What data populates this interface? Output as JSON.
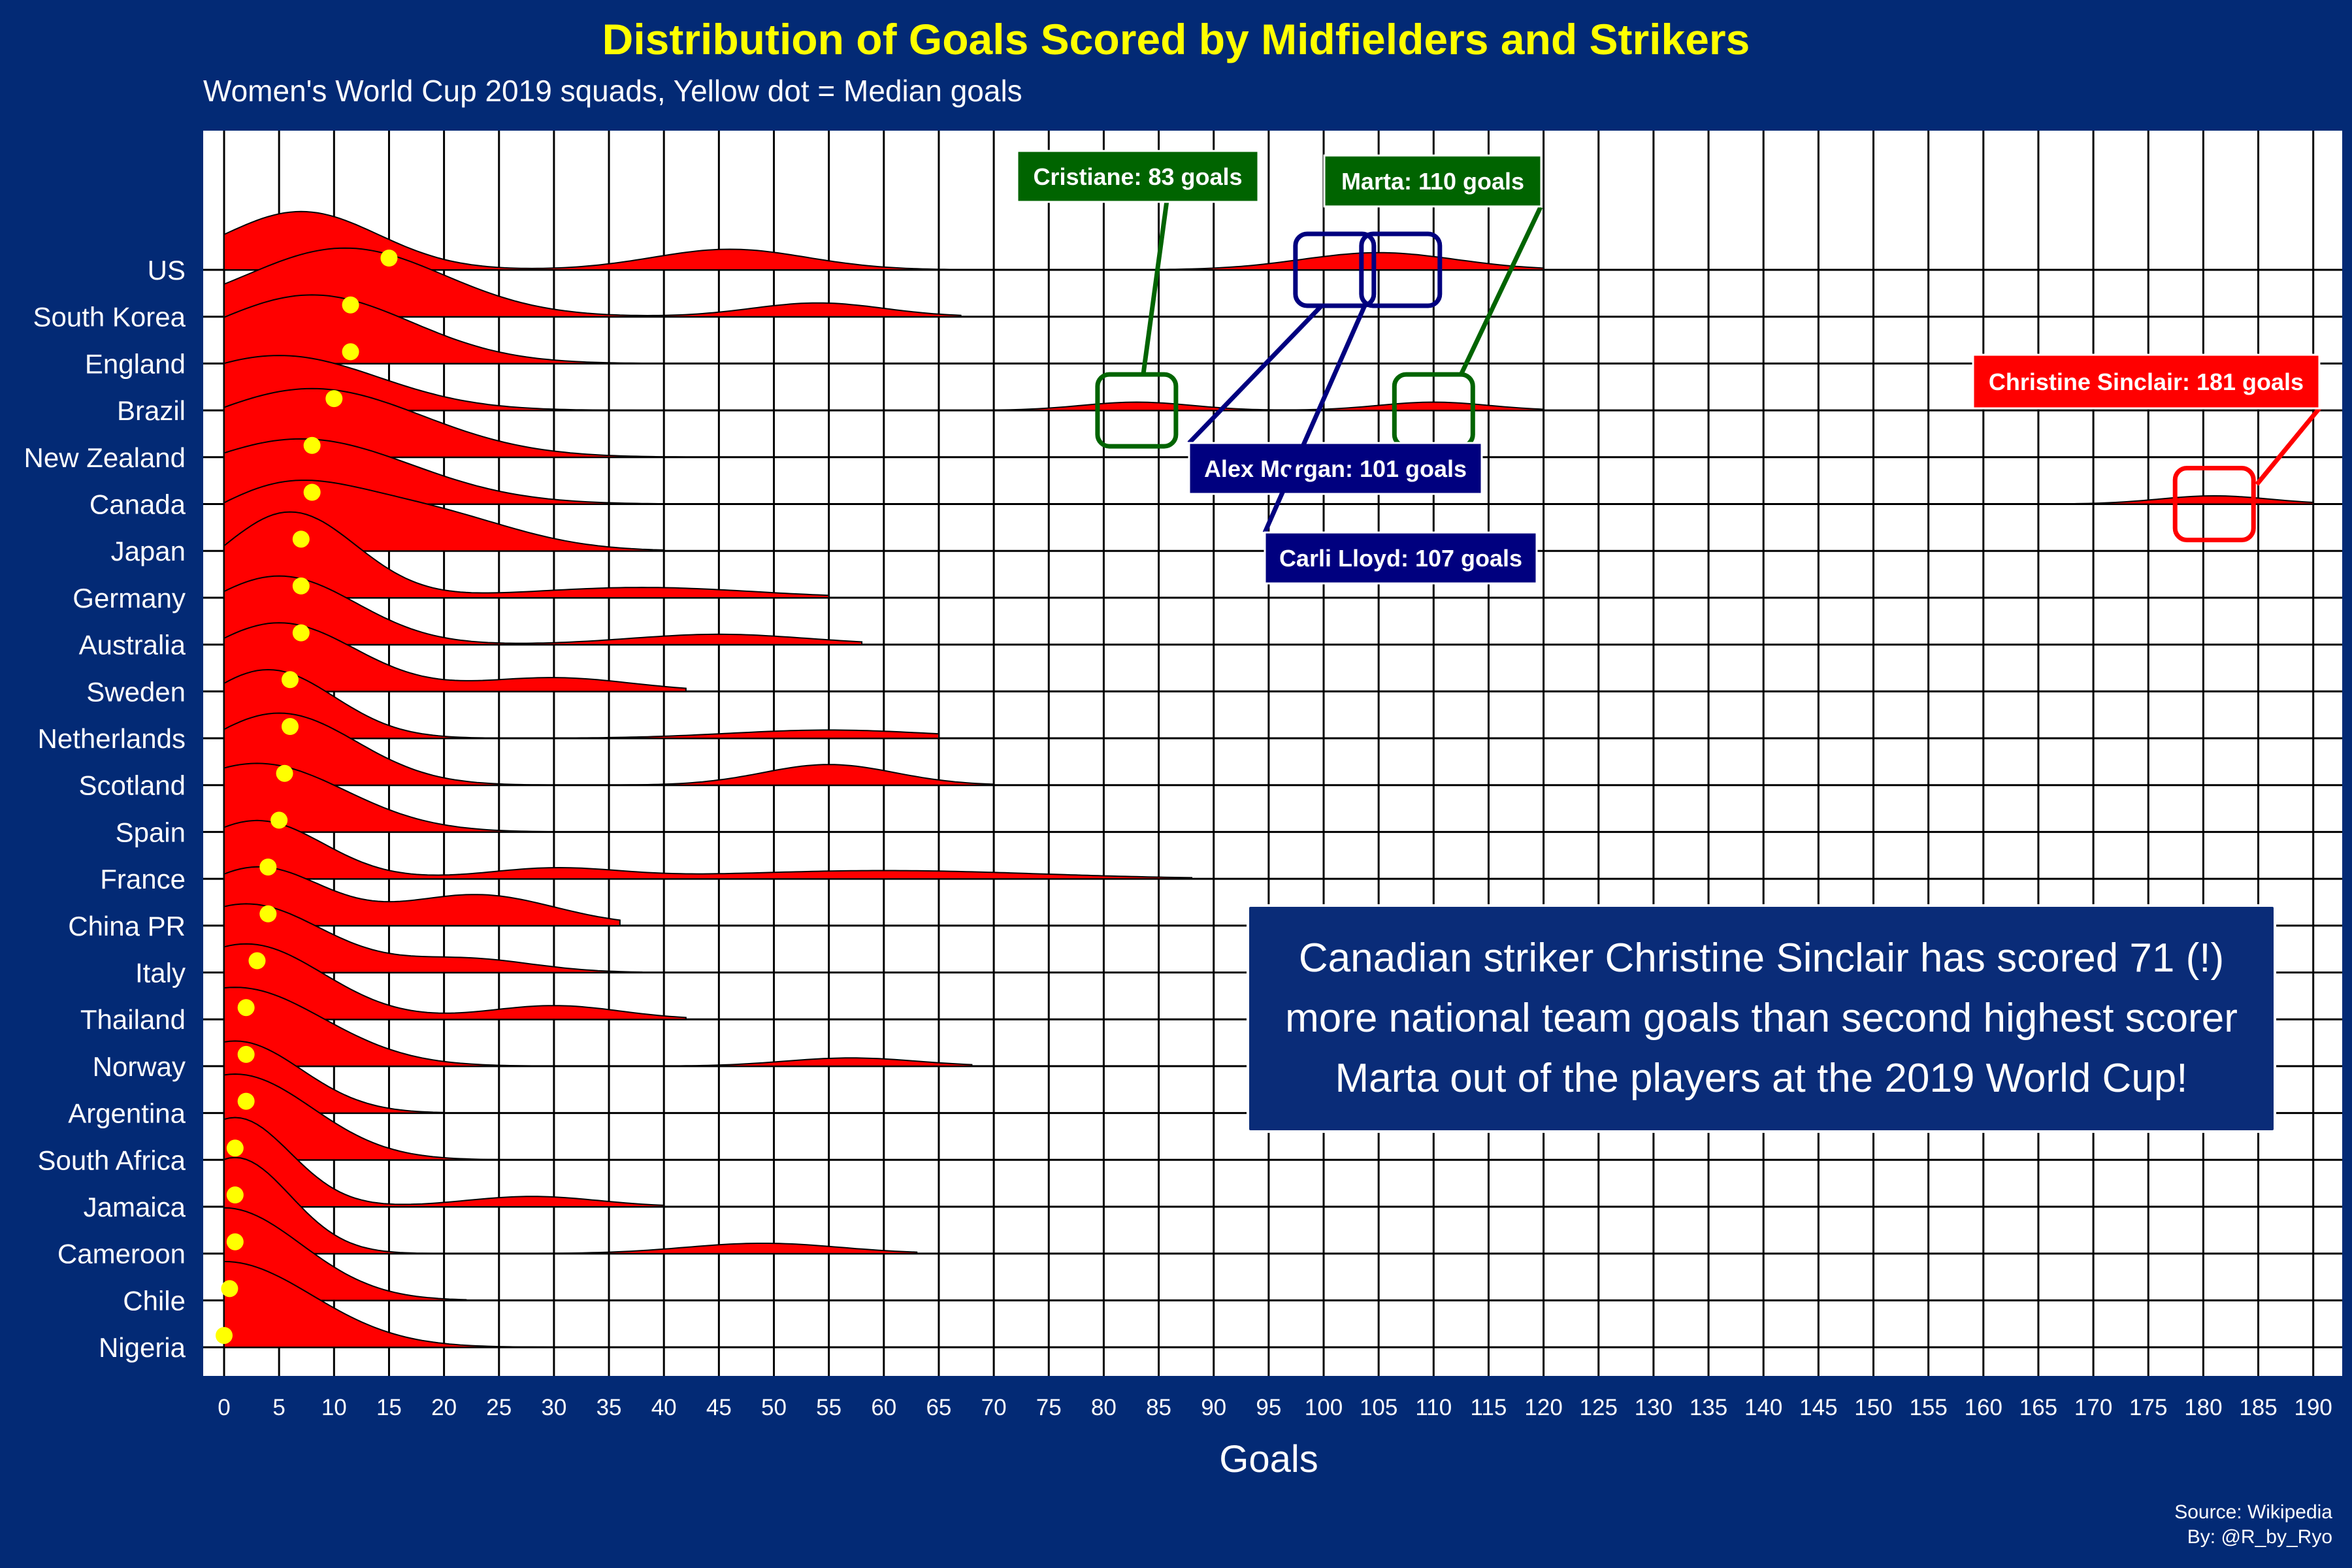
{
  "chart_data": {
    "type": "ridgeline",
    "title": "Distribution of Goals Scored by Midfielders and Strikers",
    "subtitle": "Women's World Cup 2019 squads, Yellow dot = Median goals",
    "xlabel": "Goals",
    "ylabel": "",
    "xlim": [
      -2,
      192
    ],
    "x_ticks": [
      0,
      5,
      10,
      15,
      20,
      25,
      30,
      35,
      40,
      45,
      50,
      55,
      60,
      65,
      70,
      75,
      80,
      85,
      90,
      95,
      100,
      105,
      110,
      115,
      120,
      125,
      130,
      135,
      140,
      145,
      150,
      155,
      160,
      165,
      170,
      175,
      180,
      185,
      190
    ],
    "grid": true,
    "colors": {
      "background": "#032A75",
      "panel": "#FFFFFF",
      "ridge_fill": "#FF0000",
      "median_dot": "#FFFF00",
      "title": "#FFFF00",
      "annotation_green": "#006400",
      "annotation_blue": "#00007F",
      "annotation_red": "#FF0000"
    },
    "categories": [
      "US",
      "South Korea",
      "England",
      "Brazil",
      "New Zealand",
      "Canada",
      "Japan",
      "Germany",
      "Australia",
      "Sweden",
      "Netherlands",
      "Scotland",
      "Spain",
      "France",
      "China PR",
      "Italy",
      "Thailand",
      "Norway",
      "Argentina",
      "South Africa",
      "Jamaica",
      "Cameroon",
      "Chile",
      "Nigeria"
    ],
    "medians": [
      15,
      11.5,
      11.5,
      10,
      8,
      8,
      7,
      7,
      7,
      6,
      6,
      5.5,
      5,
      4,
      4,
      3,
      2,
      2,
      2,
      1,
      1,
      1,
      0.5,
      0
    ],
    "distributions": [
      {
        "name": "US",
        "range": [
          0,
          120
        ],
        "peaks": [
          [
            7,
            0.85,
            7
          ],
          [
            46,
            0.3,
            7
          ],
          [
            105,
            0.25,
            7
          ]
        ]
      },
      {
        "name": "South Korea",
        "range": [
          0,
          67
        ],
        "peaks": [
          [
            11,
            1.0,
            9
          ],
          [
            54,
            0.2,
            6
          ]
        ]
      },
      {
        "name": "England",
        "range": [
          0,
          42
        ],
        "peaks": [
          [
            8,
            1.0,
            9
          ]
        ]
      },
      {
        "name": "Brazil",
        "range": [
          0,
          120
        ],
        "peaks": [
          [
            5,
            0.8,
            9
          ],
          [
            83,
            0.12,
            5
          ],
          [
            110,
            0.12,
            5
          ]
        ]
      },
      {
        "name": "New Zealand",
        "range": [
          0,
          45
        ],
        "peaks": [
          [
            8,
            1.0,
            10
          ]
        ]
      },
      {
        "name": "Canada",
        "range": [
          0,
          190
        ],
        "peaks": [
          [
            7,
            0.95,
            10
          ],
          [
            181,
            0.12,
            5
          ]
        ]
      },
      {
        "name": "Japan",
        "range": [
          0,
          40
        ],
        "peaks": [
          [
            5,
            0.85,
            7
          ],
          [
            18,
            0.55,
            8
          ]
        ]
      },
      {
        "name": "Germany",
        "range": [
          0,
          55
        ],
        "peaks": [
          [
            6,
            1.25,
            6
          ],
          [
            38,
            0.15,
            10
          ]
        ]
      },
      {
        "name": "Australia",
        "range": [
          0,
          58
        ],
        "peaks": [
          [
            5,
            1.0,
            7
          ],
          [
            45,
            0.15,
            8
          ]
        ]
      },
      {
        "name": "Sweden",
        "range": [
          0,
          42
        ],
        "peaks": [
          [
            5,
            1.0,
            7
          ],
          [
            30,
            0.2,
            7
          ]
        ]
      },
      {
        "name": "Netherlands",
        "range": [
          0,
          65
        ],
        "peaks": [
          [
            4,
            1.0,
            6
          ],
          [
            55,
            0.12,
            9
          ]
        ]
      },
      {
        "name": "Scotland",
        "range": [
          0,
          70
        ],
        "peaks": [
          [
            5,
            1.05,
            7
          ],
          [
            55,
            0.3,
            6
          ]
        ]
      },
      {
        "name": "Spain",
        "range": [
          0,
          40
        ],
        "peaks": [
          [
            3,
            1.0,
            8
          ]
        ]
      },
      {
        "name": "France",
        "range": [
          0,
          88
        ],
        "peaks": [
          [
            3,
            0.85,
            6
          ],
          [
            30,
            0.15,
            6
          ],
          [
            60,
            0.12,
            14
          ]
        ]
      },
      {
        "name": "China PR",
        "range": [
          0,
          36
        ],
        "peaks": [
          [
            3,
            0.85,
            6
          ],
          [
            23,
            0.45,
            7
          ]
        ]
      },
      {
        "name": "Italy",
        "range": [
          0,
          38
        ],
        "peaks": [
          [
            2,
            1.0,
            7
          ],
          [
            22,
            0.2,
            6
          ]
        ]
      },
      {
        "name": "Thailand",
        "range": [
          0,
          42
        ],
        "peaks": [
          [
            2,
            1.1,
            7
          ],
          [
            30,
            0.2,
            6
          ]
        ]
      },
      {
        "name": "Norway",
        "range": [
          0,
          68
        ],
        "peaks": [
          [
            1,
            1.15,
            8
          ],
          [
            57,
            0.12,
            6
          ]
        ]
      },
      {
        "name": "Argentina",
        "range": [
          0,
          20
        ],
        "peaks": [
          [
            1,
            1.05,
            6
          ]
        ]
      },
      {
        "name": "South Africa",
        "range": [
          0,
          30
        ],
        "peaks": [
          [
            1,
            1.25,
            7
          ]
        ]
      },
      {
        "name": "Jamaica",
        "range": [
          0,
          40
        ],
        "peaks": [
          [
            1,
            1.3,
            5
          ],
          [
            28,
            0.15,
            6
          ]
        ]
      },
      {
        "name": "Cameroon",
        "range": [
          0,
          63
        ],
        "peaks": [
          [
            1,
            1.4,
            5
          ],
          [
            49,
            0.15,
            7
          ]
        ]
      },
      {
        "name": "Chile",
        "range": [
          0,
          22
        ],
        "peaks": [
          [
            0,
            1.35,
            7
          ]
        ]
      },
      {
        "name": "Nigeria",
        "range": [
          0,
          32
        ],
        "peaks": [
          [
            0,
            1.25,
            8
          ]
        ]
      }
    ],
    "annotations": [
      {
        "label": "Cristiane: 83 goals",
        "color": "#006400",
        "x": 83,
        "country": "Brazil"
      },
      {
        "label": "Marta: 110 goals",
        "color": "#006400",
        "x": 110,
        "country": "Brazil"
      },
      {
        "label": "Alex Morgan: 101 goals",
        "color": "#00007F",
        "x": 101,
        "country": "US"
      },
      {
        "label": "Carli Lloyd: 107 goals",
        "color": "#00007F",
        "x": 107,
        "country": "US"
      },
      {
        "label": "Christine Sinclair: 181 goals",
        "color": "#FF0000",
        "x": 181,
        "country": "Canada"
      }
    ]
  },
  "callout": {
    "text": "Canadian striker Christine Sinclair has scored 71 (!) more national team goals than second highest scorer Marta out of the players at the 2019 World Cup!"
  },
  "source": {
    "line1": "Source: Wikipedia",
    "line2": "By: @R_by_Ryo"
  }
}
